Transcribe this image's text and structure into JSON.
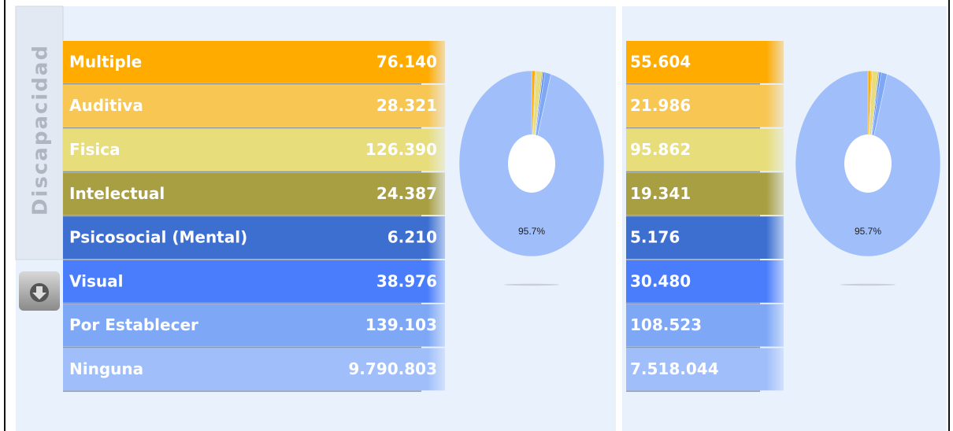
{
  "sidebar_label": "Discapacidad",
  "colors": [
    "#ffab00",
    "#f8c652",
    "#e7dd7b",
    "#a89e42",
    "#3d6fd0",
    "#4a7dfc",
    "#7ea8f6",
    "#9fbefa"
  ],
  "panels": [
    {
      "categories": [
        "Multiple",
        "Auditiva",
        "Fisica",
        "Intelectual",
        "Psicosocial (Mental)",
        "Visual",
        "Por Establecer",
        "Ninguna"
      ],
      "values": [
        76140,
        28321,
        126390,
        24387,
        6210,
        38976,
        139103,
        9790803
      ],
      "value_labels": [
        "76.140",
        "28.321",
        "126.390",
        "24.387",
        "6.210",
        "38.976",
        "139.103",
        "9.790.803"
      ],
      "pie_label": "95.7%"
    },
    {
      "values": [
        55604,
        21986,
        95862,
        19341,
        5176,
        30480,
        108523,
        7518044
      ],
      "value_labels": [
        "55.604",
        "21.986",
        "95.862",
        "19.341",
        "5.176",
        "30.480",
        "108.523",
        "7.518.044"
      ],
      "pie_label": "95.7%"
    }
  ]
}
